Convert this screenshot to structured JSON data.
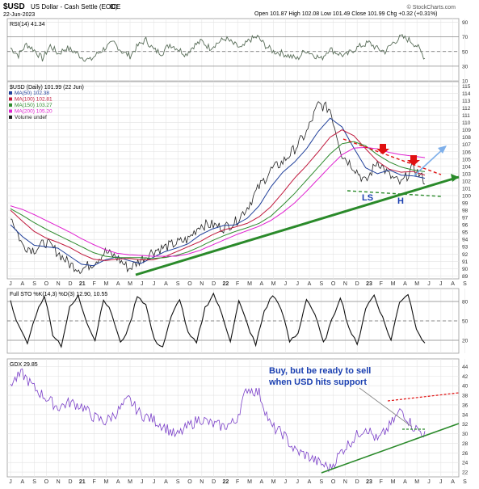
{
  "header": {
    "symbol": "$USD",
    "name": "US Dollar - Cash Settle (EOD)",
    "exchange": "ICE",
    "date": "22-Jun-2023",
    "ohlc": "Open 101.87  High 102.08  Low 101.49  Close 101.99  Chg +0.32 (+0.31%)",
    "change_arrow": "▲",
    "logo": "© StockCharts.com"
  },
  "colors": {
    "price": "#222222",
    "ma50": "#1f3f9a",
    "ma100": "#c0183c",
    "ma150": "#2e8b2e",
    "ma200": "#e020d0",
    "rsi": "#5a6e5a",
    "sto": "#111111",
    "gdx": "#7a3fc8",
    "trend_green": "#2a8a2a",
    "resist_red": "#e01010",
    "arrow_blue": "#7fb0ea",
    "neck_blue": "#1f3f9a",
    "annotation_blue": "#1a3fb0"
  },
  "x_axis": {
    "labels": [
      "J",
      "A",
      "S",
      "O",
      "N",
      "D",
      "21",
      "F",
      "M",
      "A",
      "M",
      "J",
      "J",
      "A",
      "S",
      "O",
      "N",
      "D",
      "22",
      "F",
      "M",
      "A",
      "M",
      "J",
      "J",
      "A",
      "S",
      "O",
      "N",
      "D",
      "23",
      "F",
      "M",
      "A",
      "M",
      "J",
      "J",
      "A",
      "S"
    ]
  },
  "rsi_panel": {
    "title": "RSI(14) 41.34",
    "ticks": [
      "90",
      "70",
      "50",
      "30",
      "10"
    ],
    "levels": [
      90,
      70,
      50,
      30,
      10
    ]
  },
  "price_panel": {
    "title": "$USD (Daily) 101.99 (22 Jun)",
    "legend": [
      {
        "label": "MA(50) 102.38",
        "color_key": "ma50"
      },
      {
        "label": "MA(100) 102.81",
        "color_key": "ma100"
      },
      {
        "label": "MA(150) 103.27",
        "color_key": "ma150"
      },
      {
        "label": "MA(200) 105.20",
        "color_key": "ma200"
      },
      {
        "label": "Volume undef",
        "color_key": "price"
      }
    ],
    "ticks": [
      "115",
      "114",
      "113",
      "112",
      "111",
      "110",
      "109",
      "108",
      "107",
      "106",
      "105",
      "104",
      "103",
      "102",
      "101",
      "100",
      "99",
      "98",
      "97",
      "96",
      "95",
      "94",
      "93",
      "92",
      "91",
      "90",
      "89"
    ],
    "annotations": {
      "ls": "LS",
      "h": "H"
    }
  },
  "sto_panel": {
    "title": "Full STO %K(14,3) %D(3) 12.90, 10.55",
    "ticks": [
      "80",
      "50",
      "20"
    ]
  },
  "gdx_panel": {
    "title": "GDX 29.85",
    "ticks": [
      "44",
      "42",
      "40",
      "38",
      "36",
      "34",
      "32",
      "30",
      "28",
      "26",
      "24",
      "22"
    ],
    "annotation_line1": "Buy, but be ready to sell",
    "annotation_line2": "when USD hits support"
  },
  "chart_data": [
    {
      "type": "line",
      "title": "RSI(14) 41.34",
      "ylim": [
        10,
        95
      ],
      "series": [
        {
          "name": "RSI(14)",
          "values": [
            55,
            45,
            60,
            52,
            40,
            58,
            47,
            55,
            50,
            42,
            38,
            48,
            56,
            62,
            50,
            44,
            58,
            66,
            52,
            48,
            60,
            54,
            46,
            58,
            64,
            55,
            62,
            68,
            60,
            54,
            66,
            70,
            58,
            50,
            48,
            44,
            40,
            52,
            46,
            40,
            54,
            48,
            44,
            52,
            58,
            62,
            54,
            50,
            62,
            70,
            66,
            58,
            41
          ]
        }
      ]
    },
    {
      "type": "line",
      "title": "$USD (Daily) 101.99 (22 Jun)",
      "ylim": [
        89,
        115
      ],
      "x": [
        "Jul-20",
        "Aug-20",
        "Sep-20",
        "Oct-20",
        "Nov-20",
        "Dec-20",
        "Jan-21",
        "Feb-21",
        "Mar-21",
        "Apr-21",
        "May-21",
        "Jun-21",
        "Jul-21",
        "Aug-21",
        "Sep-21",
        "Oct-21",
        "Nov-21",
        "Dec-21",
        "Jan-22",
        "Feb-22",
        "Mar-22",
        "Apr-22",
        "May-22",
        "Jun-22",
        "Jul-22",
        "Aug-22",
        "Sep-22",
        "Oct-22",
        "Nov-22",
        "Dec-22",
        "Jan-23",
        "Feb-23",
        "Mar-23",
        "Apr-23",
        "May-23",
        "Jun-23"
      ],
      "series": [
        {
          "name": "$USD",
          "values": [
            97.3,
            93.2,
            92.6,
            93.6,
            92.2,
            90.6,
            89.9,
            90.8,
            92.3,
            91.5,
            90.0,
            91.2,
            92.4,
            92.9,
            93.5,
            94.0,
            96.0,
            96.0,
            95.6,
            96.4,
            98.4,
            101.2,
            103.5,
            104.6,
            106.4,
            108.6,
            112.5,
            111.8,
            105.6,
            103.9,
            101.8,
            104.8,
            102.7,
            101.6,
            103.9,
            101.99
          ]
        },
        {
          "name": "MA(50)",
          "values": [
            96.0,
            94.4,
            93.2,
            93.0,
            92.8,
            91.7,
            90.6,
            90.4,
            91.2,
            91.6,
            91.1,
            90.7,
            91.5,
            92.3,
            92.8,
            93.4,
            94.6,
            95.4,
            95.9,
            96.0,
            96.9,
            98.6,
            101.2,
            103.2,
            104.6,
            106.4,
            108.8,
            110.6,
            109.4,
            106.5,
            103.8,
            103.0,
            103.5,
            102.8,
            102.7,
            102.38
          ]
        },
        {
          "name": "MA(100)",
          "values": [
            98.0,
            96.5,
            95.1,
            94.2,
            93.6,
            92.9,
            92.0,
            91.3,
            91.1,
            91.3,
            91.4,
            91.2,
            91.2,
            91.6,
            92.3,
            93.0,
            93.7,
            94.6,
            95.3,
            95.7,
            96.2,
            97.1,
            98.5,
            100.4,
            102.4,
            104.1,
            106.0,
            108.0,
            109.0,
            108.2,
            106.4,
            104.7,
            103.6,
            103.2,
            103.3,
            102.81
          ]
        },
        {
          "name": "MA(150)",
          "values": [
            98.2,
            97.3,
            96.3,
            95.4,
            94.6,
            93.8,
            93.0,
            92.2,
            91.7,
            91.5,
            91.5,
            91.5,
            91.4,
            91.5,
            91.8,
            92.3,
            93.0,
            93.8,
            94.5,
            95.1,
            95.6,
            96.2,
            97.2,
            98.7,
            100.3,
            102.1,
            103.9,
            105.7,
            107.1,
            107.4,
            106.8,
            105.6,
            104.6,
            103.9,
            103.5,
            103.27
          ]
        },
        {
          "name": "MA(200)",
          "values": [
            98.6,
            98.1,
            97.4,
            96.6,
            95.8,
            95.0,
            94.1,
            93.3,
            92.6,
            92.1,
            91.9,
            91.8,
            91.7,
            91.7,
            91.7,
            92.0,
            92.5,
            93.2,
            93.9,
            94.6,
            95.2,
            95.8,
            96.6,
            97.7,
            99.0,
            100.6,
            102.3,
            104.0,
            105.6,
            106.5,
            106.6,
            106.4,
            105.9,
            105.6,
            105.4,
            105.2
          ]
        }
      ]
    },
    {
      "type": "line",
      "title": "Full STO %K(14,3) %D(3) 12.90, 10.55",
      "ylim": [
        0,
        100
      ],
      "series": [
        {
          "name": "Full STO",
          "values": [
            80,
            40,
            15,
            60,
            90,
            30,
            12,
            70,
            88,
            50,
            20,
            85,
            60,
            15,
            40,
            90,
            75,
            20,
            10,
            55,
            85,
            30,
            15,
            70,
            92,
            60,
            20,
            80,
            45,
            12,
            65,
            90,
            70,
            18,
            30,
            85,
            60,
            15,
            50,
            88,
            40,
            12,
            70,
            90,
            55,
            20,
            80,
            92,
            40,
            13
          ]
        }
      ]
    },
    {
      "type": "line",
      "title": "GDX 29.85",
      "ylim": [
        21,
        45
      ],
      "x": [
        "Jul-20",
        "Aug-20",
        "Sep-20",
        "Oct-20",
        "Nov-20",
        "Dec-20",
        "Jan-21",
        "Feb-21",
        "Mar-21",
        "Apr-21",
        "May-21",
        "Jun-21",
        "Jul-21",
        "Aug-21",
        "Sep-21",
        "Oct-21",
        "Nov-21",
        "Dec-21",
        "Jan-22",
        "Feb-22",
        "Mar-22",
        "Apr-22",
        "May-22",
        "Jun-22",
        "Jul-22",
        "Aug-22",
        "Sep-22",
        "Oct-22",
        "Nov-22",
        "Dec-22",
        "Jan-23",
        "Feb-23",
        "Mar-23",
        "Apr-23",
        "May-23",
        "Jun-23"
      ],
      "series": [
        {
          "name": "GDX",
          "values": [
            40.5,
            42.5,
            39.5,
            37.5,
            35.5,
            36.5,
            35.8,
            33.5,
            32.5,
            34.5,
            37.2,
            34.0,
            33.0,
            31.5,
            29.5,
            31.5,
            33.2,
            32.0,
            31.5,
            32.5,
            39.5,
            38.5,
            31.5,
            30.0,
            26.5,
            25.5,
            24.0,
            22.8,
            26.5,
            29.0,
            31.5,
            28.5,
            31.5,
            35.0,
            31.5,
            29.85
          ]
        }
      ]
    }
  ]
}
